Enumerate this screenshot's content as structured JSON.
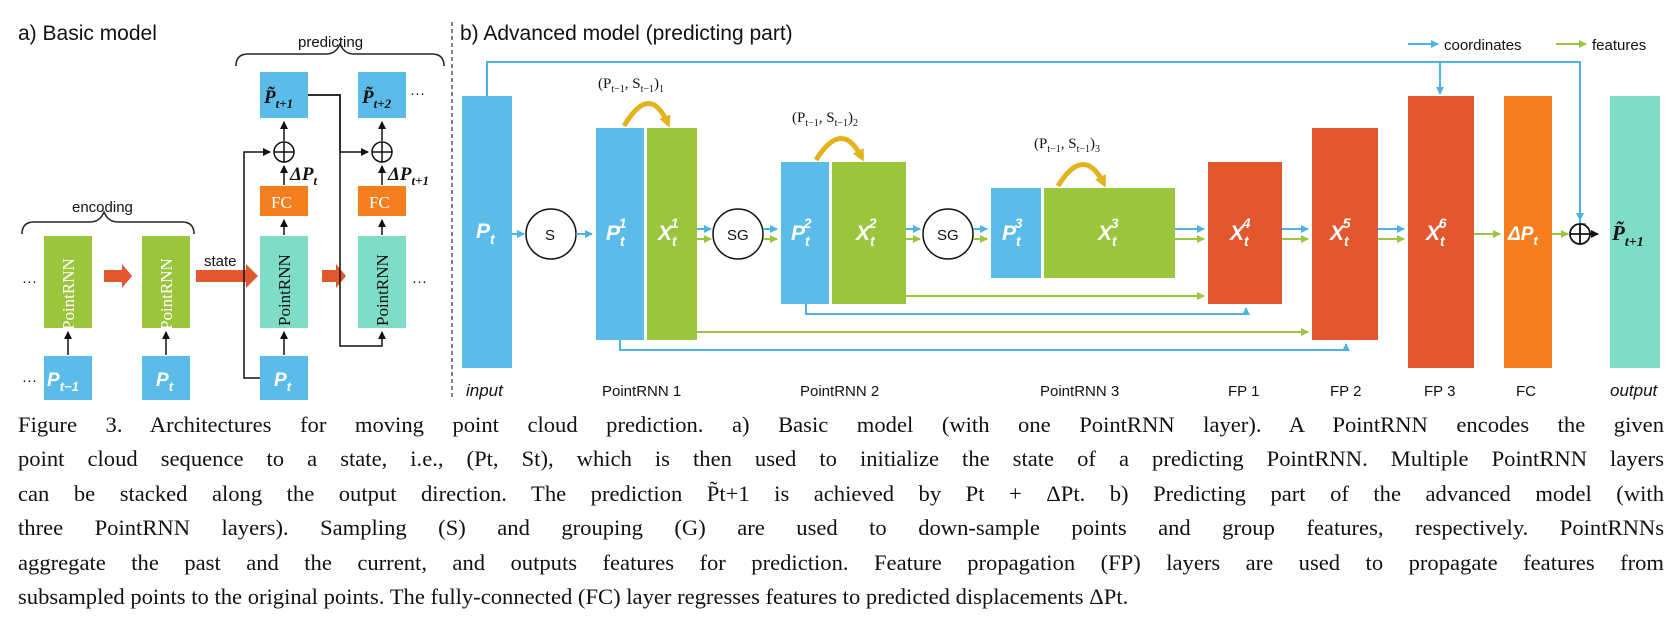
{
  "colors": {
    "blue": "#5bbcea",
    "green": "#9bc53d",
    "teal": "#7fdcc6",
    "orange": "#f57f1f",
    "red": "#e2572e",
    "coord_arrow": "#4db3e6",
    "feat_arrow": "#9bc53d",
    "gold": "#e3b31e"
  },
  "left": {
    "title": "a) Basic model",
    "encoding_label": "encoding",
    "predicting_label": "predicting",
    "state_label": "state",
    "rnn_label": "PointRNN",
    "fc_label": "FC",
    "ellipsis": "···",
    "p_tm1": "P",
    "p_tm1_sub": "t−1",
    "p_t": "P",
    "p_t_sub": "t",
    "pred1": "P̃",
    "pred1_sub": "t+1",
    "pred2": "P̃",
    "pred2_sub": "t+2",
    "delta1": "ΔP",
    "delta1_sub": "t",
    "delta2": "ΔP",
    "delta2_sub": "t+1"
  },
  "right": {
    "title": "b) Advanced model (predicting part)",
    "legend_coord": "coordinates",
    "legend_feat": "features",
    "input_box": "P",
    "input_box_sub": "t",
    "s_label": "S",
    "sg_label": "SG",
    "rnn1_p": "P",
    "rnn1_p_sub": "t",
    "rnn1_p_sup": "1",
    "rnn1_x": "X",
    "rnn1_x_sub": "t",
    "rnn1_x_sup": "1",
    "rnn2_p": "P",
    "rnn2_p_sub": "t",
    "rnn2_p_sup": "2",
    "rnn2_x": "X",
    "rnn2_x_sub": "t",
    "rnn2_x_sup": "2",
    "rnn3_p": "P",
    "rnn3_p_sub": "t",
    "rnn3_p_sup": "3",
    "rnn3_x": "X",
    "rnn3_x_sub": "t",
    "rnn3_x_sup": "3",
    "state1": "(P",
    "state1_sub1": "t−1",
    "state1_mid": ", S",
    "state1_sub2": "t−1",
    "state1_end": ")",
    "state1_idx": "1",
    "state2_idx": "2",
    "state3_idx": "3",
    "fp1": "X",
    "fp1_sub": "t",
    "fp1_sup": "4",
    "fp2": "X",
    "fp2_sub": "t",
    "fp2_sup": "5",
    "fp3": "X",
    "fp3_sub": "t",
    "fp3_sup": "6",
    "fc_box": "ΔP",
    "fc_box_sub": "t",
    "output_label": "P̃",
    "output_label_sub": "t+1",
    "bottom_labels": [
      "input",
      "PointRNN 1",
      "PointRNN 2",
      "PointRNN 3",
      "FP 1",
      "FP 2",
      "FP 3",
      "FC",
      "output"
    ]
  },
  "caption_lines": [
    "Figure 3. Architectures for moving point cloud prediction.  a) Basic model (with one PointRNN layer).  A PointRNN encodes the given",
    "point cloud sequence to a state, i.e., (Pt, St), which is then used to initialize the state of a predicting PointRNN. Multiple PointRNN layers",
    "can be stacked along the output direction. The prediction P̃t+1 is achieved by Pt + ΔPt. b) Predicting part of the advanced model (with",
    "three PointRNN layers).  Sampling (S) and grouping (G) are used to down-sample points and group features, respectively.  PointRNNs",
    "aggregate the past and the current, and outputs features for prediction. Feature propagation (FP) layers are used to propagate features from",
    "subsampled points to the original points. The fully-connected (FC) layer regresses features to predicted displacements ΔPt."
  ]
}
